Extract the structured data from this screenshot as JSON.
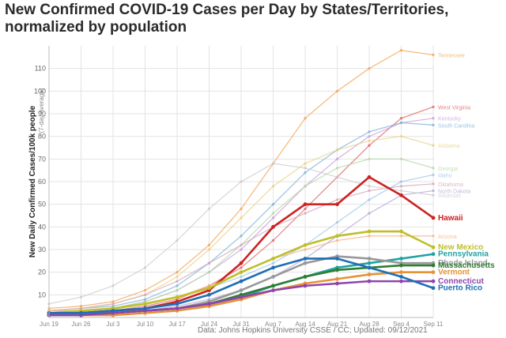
{
  "title_line1": "New Confirmed COVID-19 Cases per Day by States/Territories,",
  "title_line2": "normalized by population",
  "caption": "Data: Johns Hopkins University CSSE / CC; Updated: 09/12/2021",
  "chart_data": {
    "type": "line",
    "ylabel": "New Daily Confirmed Cases/100k people",
    "ylabel_sub": "(7-day Average)",
    "ylim": [
      0,
      120
    ],
    "yticks": [
      10,
      20,
      30,
      40,
      50,
      60,
      70,
      80,
      90,
      100,
      110
    ],
    "grid": true,
    "x_tick_labels": [
      "Jun 19",
      "Jun 26",
      "Jul 3",
      "Jul 10",
      "Jul 17",
      "Jul 24",
      "Jul 31",
      "Aug 7",
      "Aug 14",
      "Aug 21",
      "Aug 28",
      "Sep 4",
      "Sep 11"
    ],
    "x": [
      "Jun 19",
      "Jun 26",
      "Jul 3",
      "Jul 10",
      "Jul 17",
      "Jul 24",
      "Jul 31",
      "Aug 7",
      "Aug 14",
      "Aug 21",
      "Aug 28",
      "Sep 4",
      "Sep 11"
    ],
    "series": [
      {
        "name": "Tennessee",
        "color": "#f2a65a",
        "values": [
          4,
          5,
          7,
          12,
          20,
          32,
          48,
          68,
          88,
          100,
          110,
          118,
          116
        ]
      },
      {
        "name": "West Virginia",
        "color": "#e06666",
        "values": [
          1,
          2,
          3,
          5,
          8,
          14,
          22,
          34,
          48,
          62,
          76,
          88,
          93
        ]
      },
      {
        "name": "Kentucky",
        "color": "#c9a0dc",
        "values": [
          2,
          3,
          4,
          7,
          12,
          20,
          30,
          44,
          58,
          70,
          80,
          86,
          88
        ]
      },
      {
        "name": "South Carolina",
        "color": "#7fb3d5",
        "values": [
          3,
          4,
          5,
          8,
          14,
          24,
          36,
          50,
          64,
          74,
          82,
          86,
          85
        ]
      },
      {
        "name": "Alabama",
        "color": "#e8d38a",
        "values": [
          3,
          4,
          6,
          10,
          18,
          30,
          44,
          58,
          68,
          74,
          78,
          80,
          76
        ]
      },
      {
        "name": "Georgia",
        "color": "#b6d7a8",
        "values": [
          2,
          3,
          4,
          7,
          12,
          20,
          32,
          46,
          58,
          66,
          70,
          70,
          66
        ]
      },
      {
        "name": "Idaho",
        "color": "#9fc5e8",
        "values": [
          2,
          3,
          4,
          6,
          9,
          13,
          18,
          24,
          32,
          42,
          52,
          60,
          63
        ]
      },
      {
        "name": "Oklahoma",
        "color": "#d5a6bd",
        "values": [
          3,
          4,
          6,
          10,
          16,
          24,
          32,
          40,
          46,
          52,
          56,
          58,
          59
        ]
      },
      {
        "name": "North Dakota",
        "color": "#b4a7d6",
        "values": [
          1,
          1,
          2,
          3,
          5,
          8,
          12,
          18,
          26,
          36,
          46,
          54,
          56
        ]
      },
      {
        "name": "Arkansas",
        "color": "#cccccc",
        "values": [
          6,
          9,
          14,
          22,
          34,
          48,
          60,
          68,
          66,
          62,
          58,
          56,
          54
        ]
      },
      {
        "name": "Hawaii",
        "color": "#cc2222",
        "bold": true,
        "values": [
          2,
          2,
          3,
          4,
          7,
          12,
          24,
          40,
          50,
          50,
          62,
          54,
          44
        ]
      },
      {
        "name": "Arizona",
        "color": "#f4b183",
        "values": [
          3,
          3,
          4,
          6,
          9,
          14,
          20,
          26,
          30,
          34,
          36,
          36,
          36
        ]
      },
      {
        "name": "New Mexico",
        "color": "#bfbf2a",
        "bold": true,
        "values": [
          2,
          3,
          4,
          6,
          9,
          13,
          20,
          26,
          32,
          36,
          38,
          38,
          31
        ]
      },
      {
        "name": "Pennsylvania",
        "color": "#1fa3a3",
        "bold": true,
        "values": [
          1,
          2,
          2,
          3,
          4,
          6,
          9,
          14,
          18,
          22,
          24,
          26,
          28
        ]
      },
      {
        "name": "Rhode Island",
        "color": "#999999",
        "bold": true,
        "values": [
          1,
          1,
          2,
          3,
          4,
          7,
          12,
          18,
          24,
          27,
          26,
          24,
          24
        ]
      },
      {
        "name": "Massachusetts",
        "color": "#2e7d32",
        "bold": true,
        "values": [
          1,
          1,
          2,
          3,
          4,
          6,
          10,
          14,
          18,
          21,
          22,
          23,
          23
        ]
      },
      {
        "name": "Vermont",
        "color": "#e69138",
        "bold": true,
        "values": [
          1,
          1,
          1,
          2,
          3,
          5,
          8,
          12,
          15,
          17,
          19,
          20,
          20
        ]
      },
      {
        "name": "Connecticut",
        "color": "#8e44ad",
        "bold": true,
        "values": [
          1,
          1,
          2,
          3,
          4,
          6,
          9,
          12,
          14,
          15,
          16,
          16,
          16
        ]
      },
      {
        "name": "Puerto Rico",
        "color": "#1f6fb5",
        "bold": true,
        "values": [
          2,
          2,
          3,
          4,
          6,
          10,
          16,
          22,
          26,
          26,
          22,
          18,
          13
        ]
      }
    ]
  }
}
